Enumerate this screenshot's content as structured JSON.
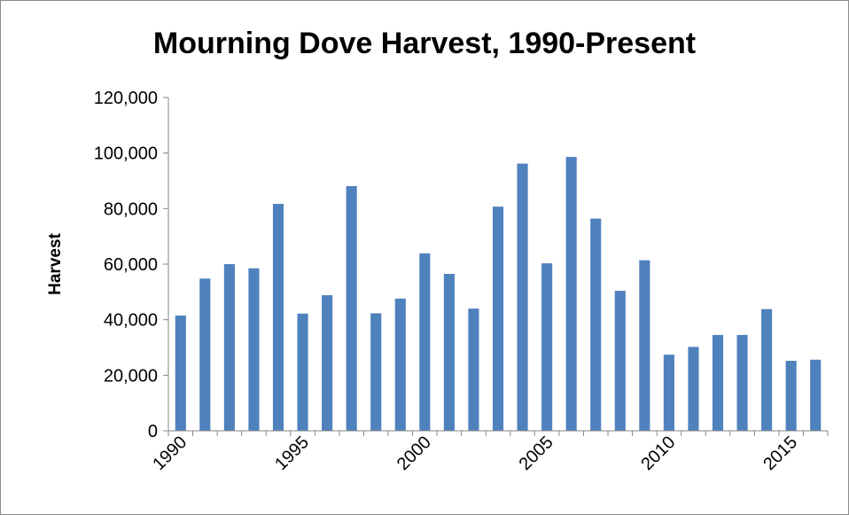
{
  "chart_data": {
    "type": "bar",
    "title": "Mourning Dove Harvest, 1990-Present",
    "xlabel": "",
    "ylabel": "Harvest",
    "ylim": [
      0,
      120000
    ],
    "yticks": [
      "0",
      "20,000",
      "40,000",
      "60,000",
      "80,000",
      "100,000",
      "120,000"
    ],
    "xtick_labels": [
      "1990",
      "1995",
      "2000",
      "2005",
      "2010",
      "2015"
    ],
    "grid": false,
    "legend": "none",
    "bar_color": "#4f81bd",
    "categories": [
      "1990",
      "1991",
      "1992",
      "1993",
      "1994",
      "1995",
      "1996",
      "1997",
      "1998",
      "1999",
      "2000",
      "2001",
      "2002",
      "2003",
      "2004",
      "2005",
      "2006",
      "2007",
      "2008",
      "2009",
      "2010",
      "2011",
      "2012",
      "2013",
      "2014",
      "2015",
      "2016"
    ],
    "values": [
      41500,
      54800,
      60000,
      58500,
      81700,
      42200,
      48800,
      88100,
      42300,
      47600,
      63900,
      56500,
      44000,
      80700,
      96200,
      60300,
      98600,
      76400,
      50400,
      61400,
      27400,
      30200,
      34500,
      34500,
      43800,
      25200,
      25600
    ]
  }
}
